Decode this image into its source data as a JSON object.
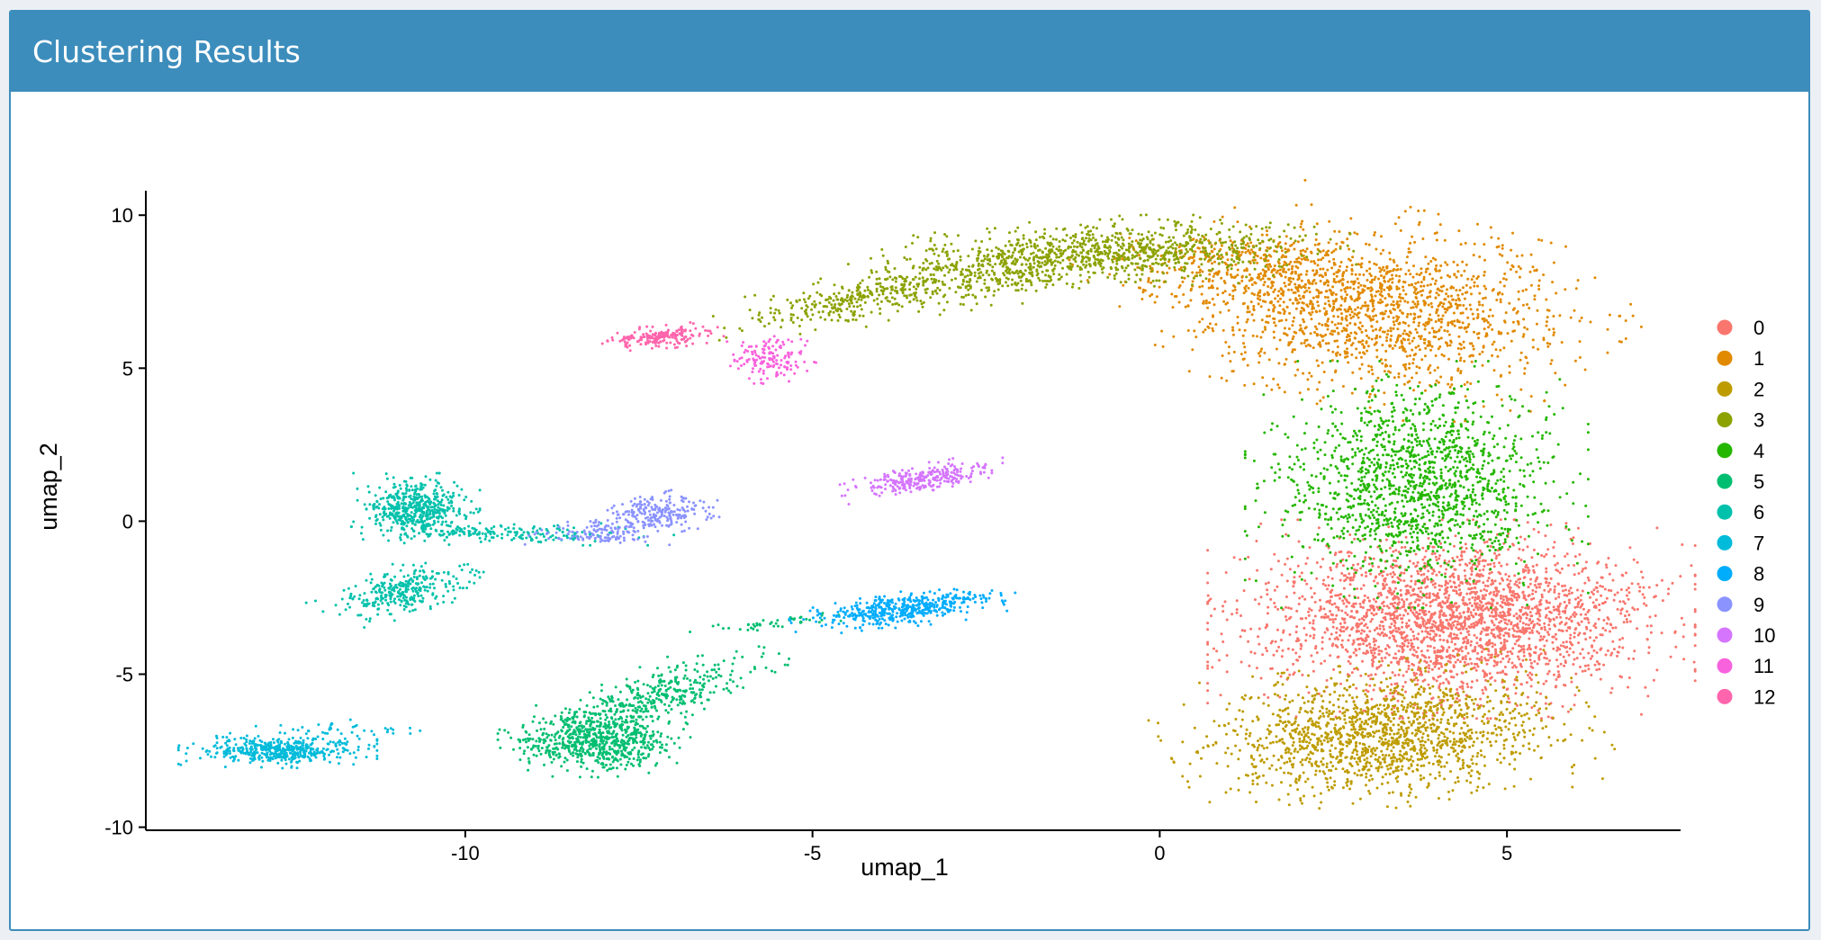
{
  "panel": {
    "title": "Clustering Results"
  },
  "chart_data": {
    "type": "scatter",
    "title": "",
    "xlabel": "umap_1",
    "ylabel": "umap_2",
    "xlim": [
      -14.6,
      7.5
    ],
    "ylim": [
      -10.1,
      10.8
    ],
    "xticks": [
      -10,
      -5,
      0,
      5
    ],
    "yticks": [
      -10,
      -5,
      0,
      5,
      10
    ],
    "grid": false,
    "legend": "right",
    "point_size": 1.5,
    "series": [
      {
        "name": "0",
        "color": "#F8766D",
        "regions": [
          {
            "cx": 4.2,
            "cy": -3.2,
            "sx": 1.35,
            "sy": 1.25,
            "rot": 0,
            "n": 2600
          }
        ]
      },
      {
        "name": "1",
        "color": "#E18A00",
        "regions": [
          {
            "cx": 3.2,
            "cy": 6.9,
            "sx": 1.35,
            "sy": 1.2,
            "rot": -30,
            "n": 1500
          },
          {
            "cx": 1.3,
            "cy": 8.2,
            "sx": 1.0,
            "sy": 0.6,
            "rot": -15,
            "n": 400
          }
        ]
      },
      {
        "name": "2",
        "color": "#BE9C00",
        "regions": [
          {
            "cx": 3.2,
            "cy": -7.0,
            "sx": 1.2,
            "sy": 0.9,
            "rot": 15,
            "n": 1500
          }
        ]
      },
      {
        "name": "3",
        "color": "#8CA200",
        "regions": [
          {
            "cx": -0.6,
            "cy": 8.8,
            "sx": 1.3,
            "sy": 0.45,
            "rot": 5,
            "n": 800
          },
          {
            "cx": -2.7,
            "cy": 8.0,
            "sx": 1.3,
            "sy": 0.42,
            "rot": 22,
            "n": 500
          },
          {
            "cx": -4.6,
            "cy": 7.1,
            "sx": 0.8,
            "sy": 0.25,
            "rot": 25,
            "n": 180
          }
        ]
      },
      {
        "name": "4",
        "color": "#24B700",
        "regions": [
          {
            "cx": 3.7,
            "cy": 1.2,
            "sx": 0.95,
            "sy": 1.55,
            "rot": 0,
            "n": 1500
          }
        ]
      },
      {
        "name": "5",
        "color": "#00BE70",
        "regions": [
          {
            "cx": -8.1,
            "cy": -7.2,
            "sx": 0.55,
            "sy": 0.45,
            "rot": 0,
            "n": 650
          },
          {
            "cx": -7.3,
            "cy": -5.8,
            "sx": 0.9,
            "sy": 0.35,
            "rot": 40,
            "n": 400
          },
          {
            "cx": -5.5,
            "cy": -3.3,
            "sx": 0.5,
            "sy": 0.1,
            "rot": 10,
            "n": 45
          }
        ]
      },
      {
        "name": "6",
        "color": "#00C1AB",
        "regions": [
          {
            "cx": -10.7,
            "cy": 0.4,
            "sx": 0.35,
            "sy": 0.45,
            "rot": 0,
            "n": 500
          },
          {
            "cx": -10.9,
            "cy": -2.3,
            "sx": 0.5,
            "sy": 0.3,
            "rot": 40,
            "n": 300
          },
          {
            "cx": -9.3,
            "cy": -0.4,
            "sx": 0.9,
            "sy": 0.15,
            "rot": 0,
            "n": 180
          }
        ]
      },
      {
        "name": "7",
        "color": "#00BBDA",
        "regions": [
          {
            "cx": -12.7,
            "cy": -7.5,
            "sx": 0.55,
            "sy": 0.22,
            "rot": 0,
            "n": 480
          },
          {
            "cx": -11.6,
            "cy": -6.8,
            "sx": 0.6,
            "sy": 0.12,
            "rot": 0,
            "n": 40
          }
        ]
      },
      {
        "name": "8",
        "color": "#00ACFC",
        "regions": [
          {
            "cx": -3.8,
            "cy": -2.9,
            "sx": 0.6,
            "sy": 0.22,
            "rot": 12,
            "n": 400
          },
          {
            "cx": -3.0,
            "cy": -2.5,
            "sx": 0.4,
            "sy": 0.1,
            "rot": 0,
            "n": 60
          }
        ]
      },
      {
        "name": "9",
        "color": "#8B93FF",
        "regions": [
          {
            "cx": -7.2,
            "cy": 0.3,
            "sx": 0.35,
            "sy": 0.28,
            "rot": 20,
            "n": 220
          },
          {
            "cx": -8.1,
            "cy": -0.4,
            "sx": 0.4,
            "sy": 0.18,
            "rot": 0,
            "n": 120
          }
        ]
      },
      {
        "name": "10",
        "color": "#D575FE",
        "regions": [
          {
            "cx": -3.4,
            "cy": 1.4,
            "sx": 0.5,
            "sy": 0.18,
            "rot": 20,
            "n": 280
          }
        ]
      },
      {
        "name": "11",
        "color": "#F962DD",
        "regions": [
          {
            "cx": -5.6,
            "cy": 5.3,
            "sx": 0.25,
            "sy": 0.35,
            "rot": 0,
            "n": 150
          }
        ]
      },
      {
        "name": "12",
        "color": "#FF65AC",
        "regions": [
          {
            "cx": -7.2,
            "cy": 6.0,
            "sx": 0.35,
            "sy": 0.15,
            "rot": 12,
            "n": 180
          }
        ]
      }
    ]
  }
}
